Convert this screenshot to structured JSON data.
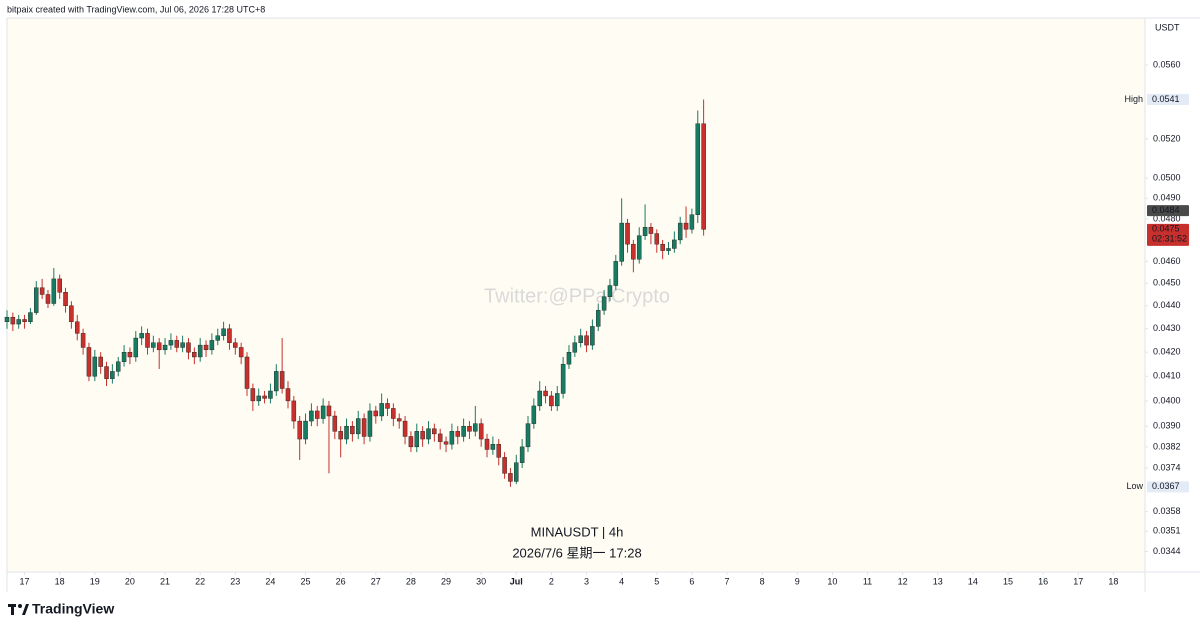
{
  "chart_data": {
    "type": "candlestick",
    "header": "bitpaix created with TradingView.com, Jul 06, 2026 17:28 UTC+8",
    "watermark": "Twitter:@PPaiCrypto",
    "symbol": "MINAUSDT | 4h",
    "timestamp": "2026/7/6 星期一 17:28",
    "currency": "USDT",
    "brand": "TradingView",
    "log_scale": true,
    "grid": false,
    "up_color": "#197a62",
    "down_color": "#c7302d",
    "xlim": [
      0,
      194.4
    ],
    "xticks": [
      {
        "value": 3,
        "label": "17"
      },
      {
        "value": 9,
        "label": "18"
      },
      {
        "value": 15,
        "label": "19"
      },
      {
        "value": 21,
        "label": "20"
      },
      {
        "value": 27,
        "label": "21"
      },
      {
        "value": 33,
        "label": "22"
      },
      {
        "value": 39,
        "label": "23"
      },
      {
        "value": 45,
        "label": "24"
      },
      {
        "value": 51,
        "label": "25"
      },
      {
        "value": 57,
        "label": "26"
      },
      {
        "value": 63,
        "label": "27"
      },
      {
        "value": 69,
        "label": "28"
      },
      {
        "value": 75,
        "label": "29"
      },
      {
        "value": 81,
        "label": "30"
      },
      {
        "value": 87,
        "label": "Jul"
      },
      {
        "value": 93,
        "label": "2"
      },
      {
        "value": 99,
        "label": "3"
      },
      {
        "value": 105,
        "label": "4"
      },
      {
        "value": 111,
        "label": "5"
      },
      {
        "value": 117,
        "label": "6"
      },
      {
        "value": 123,
        "label": "7"
      },
      {
        "value": 129,
        "label": "8"
      },
      {
        "value": 135,
        "label": "9"
      },
      {
        "value": 141,
        "label": "10"
      },
      {
        "value": 147,
        "label": "11"
      },
      {
        "value": 153,
        "label": "12"
      },
      {
        "value": 159,
        "label": "13"
      },
      {
        "value": 165,
        "label": "14"
      },
      {
        "value": 171,
        "label": "15"
      },
      {
        "value": 177,
        "label": "16"
      },
      {
        "value": 183,
        "label": "17"
      },
      {
        "value": 189,
        "label": "18"
      }
    ],
    "ylim": [
      0.0337,
      0.0587
    ],
    "yticks": [
      {
        "value": 0.056,
        "label": "0.0560"
      },
      {
        "value": 0.052,
        "label": "0.0520"
      },
      {
        "value": 0.05,
        "label": "0.0500"
      },
      {
        "value": 0.049,
        "label": "0.0490"
      },
      {
        "value": 0.048,
        "label": "0.0480"
      },
      {
        "value": 0.046,
        "label": "0.0460"
      },
      {
        "value": 0.045,
        "label": "0.0450"
      },
      {
        "value": 0.044,
        "label": "0.0440"
      },
      {
        "value": 0.043,
        "label": "0.0430"
      },
      {
        "value": 0.042,
        "label": "0.0420"
      },
      {
        "value": 0.041,
        "label": "0.0410"
      },
      {
        "value": 0.04,
        "label": "0.0400"
      },
      {
        "value": 0.039,
        "label": "0.0390"
      },
      {
        "value": 0.0382,
        "label": "0.0382"
      },
      {
        "value": 0.0374,
        "label": "0.0374"
      },
      {
        "value": 0.0358,
        "label": "0.0358"
      },
      {
        "value": 0.0351,
        "label": "0.0351"
      },
      {
        "value": 0.0344,
        "label": "0.0344"
      }
    ],
    "high_marker": {
      "label": "High",
      "value": 0.0541,
      "value_label": "0.0541"
    },
    "low_marker": {
      "label": "Low",
      "value": 0.0367,
      "value_label": "0.0367"
    },
    "prev_marker": {
      "value": 0.0484,
      "value_label": "0.0484"
    },
    "last_marker": {
      "value": 0.0475,
      "value_label": "0.0475",
      "countdown": "02:31:52"
    },
    "ohlc": [
      [
        0.0433,
        0.0438,
        0.043,
        0.0435
      ],
      [
        0.0435,
        0.0437,
        0.0429,
        0.0432
      ],
      [
        0.0432,
        0.0436,
        0.043,
        0.0434
      ],
      [
        0.0434,
        0.0436,
        0.043,
        0.0433
      ],
      [
        0.0433,
        0.0439,
        0.0432,
        0.0437
      ],
      [
        0.0437,
        0.0451,
        0.0436,
        0.0448
      ],
      [
        0.0448,
        0.0452,
        0.0443,
        0.0445
      ],
      [
        0.0445,
        0.0447,
        0.0439,
        0.0441
      ],
      [
        0.0441,
        0.0457,
        0.044,
        0.0452
      ],
      [
        0.0452,
        0.0454,
        0.0443,
        0.0446
      ],
      [
        0.0446,
        0.0448,
        0.0437,
        0.044
      ],
      [
        0.044,
        0.0442,
        0.043,
        0.0433
      ],
      [
        0.0433,
        0.0436,
        0.0425,
        0.0428
      ],
      [
        0.0428,
        0.043,
        0.0419,
        0.0422
      ],
      [
        0.0422,
        0.0424,
        0.0408,
        0.041
      ],
      [
        0.041,
        0.0421,
        0.0408,
        0.0418
      ],
      [
        0.0418,
        0.042,
        0.0411,
        0.0414
      ],
      [
        0.0414,
        0.0416,
        0.0406,
        0.0409
      ],
      [
        0.0409,
        0.0415,
        0.0407,
        0.0412
      ],
      [
        0.0412,
        0.0418,
        0.041,
        0.0416
      ],
      [
        0.0416,
        0.0423,
        0.0414,
        0.042
      ],
      [
        0.042,
        0.0422,
        0.0415,
        0.0418
      ],
      [
        0.0418,
        0.0429,
        0.0416,
        0.0426
      ],
      [
        0.0426,
        0.0431,
        0.0423,
        0.0428
      ],
      [
        0.0428,
        0.043,
        0.0419,
        0.0422
      ],
      [
        0.0422,
        0.0427,
        0.042,
        0.0424
      ],
      [
        0.0424,
        0.0426,
        0.0413,
        0.0421
      ],
      [
        0.0421,
        0.0426,
        0.0419,
        0.0423
      ],
      [
        0.0423,
        0.0428,
        0.0421,
        0.0425
      ],
      [
        0.0425,
        0.0427,
        0.042,
        0.0422
      ],
      [
        0.0422,
        0.0427,
        0.042,
        0.0424
      ],
      [
        0.0424,
        0.0426,
        0.0417,
        0.042
      ],
      [
        0.042,
        0.0422,
        0.0415,
        0.0418
      ],
      [
        0.0418,
        0.0426,
        0.0416,
        0.0423
      ],
      [
        0.0423,
        0.0425,
        0.0418,
        0.0421
      ],
      [
        0.0421,
        0.0428,
        0.0419,
        0.0425
      ],
      [
        0.0425,
        0.043,
        0.0423,
        0.0427
      ],
      [
        0.0427,
        0.0433,
        0.0425,
        0.043
      ],
      [
        0.043,
        0.0432,
        0.0421,
        0.0424
      ],
      [
        0.0424,
        0.0426,
        0.0419,
        0.0422
      ],
      [
        0.0422,
        0.0424,
        0.0415,
        0.0418
      ],
      [
        0.0418,
        0.042,
        0.0402,
        0.0405
      ],
      [
        0.0405,
        0.0407,
        0.0396,
        0.04
      ],
      [
        0.04,
        0.0405,
        0.0398,
        0.0402
      ],
      [
        0.0402,
        0.0404,
        0.0399,
        0.0401
      ],
      [
        0.0401,
        0.0407,
        0.0399,
        0.0404
      ],
      [
        0.0404,
        0.0415,
        0.0402,
        0.0412
      ],
      [
        0.0412,
        0.0426,
        0.0403,
        0.0405
      ],
      [
        0.0405,
        0.0408,
        0.0397,
        0.04
      ],
      [
        0.04,
        0.0402,
        0.0389,
        0.0392
      ],
      [
        0.0392,
        0.0394,
        0.0377,
        0.0385
      ],
      [
        0.0385,
        0.0395,
        0.0383,
        0.0392
      ],
      [
        0.0392,
        0.0399,
        0.039,
        0.0396
      ],
      [
        0.0396,
        0.0398,
        0.039,
        0.0393
      ],
      [
        0.0393,
        0.0401,
        0.0391,
        0.0398
      ],
      [
        0.0398,
        0.04,
        0.0372,
        0.0394
      ],
      [
        0.0394,
        0.0396,
        0.0385,
        0.0388
      ],
      [
        0.0388,
        0.039,
        0.0378,
        0.0385
      ],
      [
        0.0385,
        0.0393,
        0.0383,
        0.039
      ],
      [
        0.039,
        0.0392,
        0.0384,
        0.0387
      ],
      [
        0.0387,
        0.0396,
        0.0385,
        0.0393
      ],
      [
        0.0393,
        0.0395,
        0.0383,
        0.0386
      ],
      [
        0.0386,
        0.0399,
        0.0384,
        0.0396
      ],
      [
        0.0396,
        0.0398,
        0.0391,
        0.0394
      ],
      [
        0.0394,
        0.0403,
        0.0392,
        0.0399
      ],
      [
        0.0399,
        0.0401,
        0.0394,
        0.0397
      ],
      [
        0.0397,
        0.0399,
        0.039,
        0.0393
      ],
      [
        0.0393,
        0.0395,
        0.0389,
        0.0392
      ],
      [
        0.0392,
        0.0394,
        0.0383,
        0.0386
      ],
      [
        0.0386,
        0.0388,
        0.038,
        0.0382
      ],
      [
        0.0382,
        0.0391,
        0.038,
        0.0388
      ],
      [
        0.0388,
        0.039,
        0.0382,
        0.0385
      ],
      [
        0.0385,
        0.0392,
        0.0383,
        0.0389
      ],
      [
        0.0389,
        0.0391,
        0.0384,
        0.0387
      ],
      [
        0.0387,
        0.0389,
        0.0381,
        0.0384
      ],
      [
        0.0384,
        0.0386,
        0.038,
        0.0383
      ],
      [
        0.0383,
        0.0391,
        0.0381,
        0.0388
      ],
      [
        0.0388,
        0.039,
        0.0383,
        0.0386
      ],
      [
        0.0386,
        0.0393,
        0.0384,
        0.039
      ],
      [
        0.039,
        0.0392,
        0.0385,
        0.0388
      ],
      [
        0.0388,
        0.0398,
        0.0386,
        0.0391
      ],
      [
        0.0391,
        0.0393,
        0.0382,
        0.0385
      ],
      [
        0.0385,
        0.0387,
        0.0378,
        0.0381
      ],
      [
        0.0381,
        0.0386,
        0.0379,
        0.0383
      ],
      [
        0.0383,
        0.0385,
        0.0375,
        0.0378
      ],
      [
        0.0378,
        0.038,
        0.037,
        0.0372
      ],
      [
        0.0372,
        0.0374,
        0.0367,
        0.0369
      ],
      [
        0.0369,
        0.0379,
        0.0368,
        0.0376
      ],
      [
        0.0376,
        0.0385,
        0.0374,
        0.0382
      ],
      [
        0.0382,
        0.0394,
        0.038,
        0.0391
      ],
      [
        0.0391,
        0.0401,
        0.0389,
        0.0398
      ],
      [
        0.0398,
        0.0408,
        0.0396,
        0.0404
      ],
      [
        0.0404,
        0.0406,
        0.0399,
        0.0402
      ],
      [
        0.0402,
        0.0404,
        0.0396,
        0.0398
      ],
      [
        0.0398,
        0.0406,
        0.0396,
        0.0403
      ],
      [
        0.0403,
        0.0418,
        0.0401,
        0.0415
      ],
      [
        0.0415,
        0.0423,
        0.0413,
        0.042
      ],
      [
        0.042,
        0.0427,
        0.0418,
        0.0424
      ],
      [
        0.0424,
        0.043,
        0.0422,
        0.0427
      ],
      [
        0.0427,
        0.0429,
        0.042,
        0.0423
      ],
      [
        0.0423,
        0.0434,
        0.0421,
        0.0431
      ],
      [
        0.0431,
        0.0441,
        0.0429,
        0.0438
      ],
      [
        0.0438,
        0.0447,
        0.0436,
        0.0444
      ],
      [
        0.0444,
        0.0452,
        0.0442,
        0.0449
      ],
      [
        0.0449,
        0.0463,
        0.0447,
        0.046
      ],
      [
        0.046,
        0.049,
        0.0458,
        0.0478
      ],
      [
        0.0478,
        0.048,
        0.0464,
        0.0468
      ],
      [
        0.0468,
        0.047,
        0.0455,
        0.0461
      ],
      [
        0.0461,
        0.0476,
        0.0459,
        0.0472
      ],
      [
        0.0472,
        0.0487,
        0.047,
        0.0476
      ],
      [
        0.0476,
        0.0478,
        0.0468,
        0.0473
      ],
      [
        0.0473,
        0.0475,
        0.0464,
        0.0468
      ],
      [
        0.0468,
        0.047,
        0.0461,
        0.0465
      ],
      [
        0.0465,
        0.0469,
        0.0463,
        0.0466
      ],
      [
        0.0466,
        0.0474,
        0.0464,
        0.047
      ],
      [
        0.047,
        0.0481,
        0.0468,
        0.0478
      ],
      [
        0.0478,
        0.0486,
        0.0471,
        0.0475
      ],
      [
        0.0475,
        0.0485,
        0.0473,
        0.0482
      ],
      [
        0.0482,
        0.0535,
        0.0478,
        0.0528
      ],
      [
        0.0528,
        0.0541,
        0.0472,
        0.0475
      ]
    ]
  }
}
